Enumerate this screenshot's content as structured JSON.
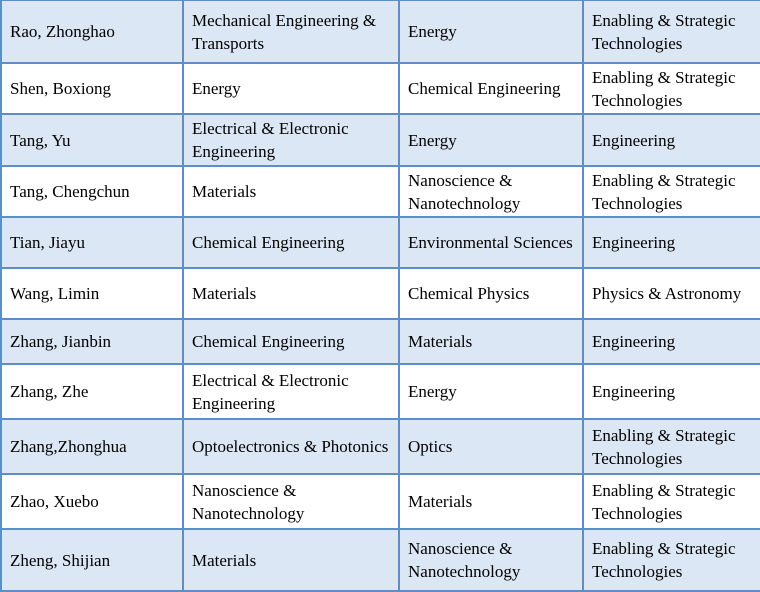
{
  "rows": [
    [
      "Rao, Zhonghao",
      "Mechanical Engineering & Transports",
      "Energy",
      "Enabling & Strategic Technologies"
    ],
    [
      "Shen, Boxiong",
      "Energy",
      "Chemical Engineering",
      "Enabling & Strategic Technologies"
    ],
    [
      "Tang, Yu",
      "Electrical & Electronic Engineering",
      "Energy",
      "Engineering"
    ],
    [
      "Tang, Chengchun",
      "Materials",
      "Nanoscience & Nanotechnology",
      "Enabling & Strategic Technologies"
    ],
    [
      "Tian, Jiayu",
      "Chemical Engineering",
      "Environmental Sciences",
      "Engineering"
    ],
    [
      "Wang, Limin",
      "Materials",
      "Chemical Physics",
      "Physics & Astronomy"
    ],
    [
      "Zhang, Jianbin",
      "Chemical Engineering",
      "Materials",
      "Engineering"
    ],
    [
      "Zhang, Zhe",
      "Electrical & Electronic Engineering",
      "Energy",
      "Engineering"
    ],
    [
      "Zhang,Zhonghua",
      "Optoelectronics & Photonics",
      "Optics",
      "Enabling & Strategic Technologies"
    ],
    [
      "Zhao, Xuebo",
      "Nanoscience & Nanotechnology",
      "Materials",
      "Enabling & Strategic Technologies"
    ],
    [
      "Zheng, Shijian",
      "Materials",
      "Nanoscience & Nanotechnology",
      "Enabling & Strategic Technologies"
    ]
  ],
  "colors": {
    "shade": "#dbe7f5",
    "border": "#5b8fc9"
  }
}
